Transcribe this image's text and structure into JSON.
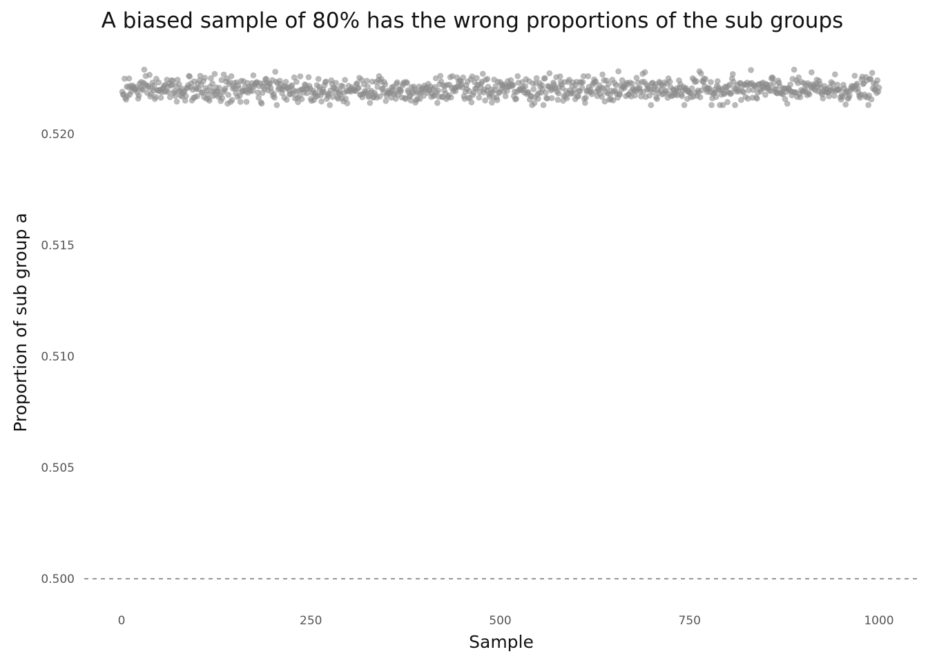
{
  "chart_data": {
    "type": "scatter",
    "title": "A biased sample of 80% has the wrong proportions of the sub groups",
    "xlabel": "Sample",
    "ylabel": "Proportion of sub group a",
    "xlim": [
      0,
      1000
    ],
    "ylim": [
      0.5,
      0.5225
    ],
    "x_ticks": [
      0,
      250,
      500,
      750,
      1000
    ],
    "x_tick_labels": [
      "0",
      "250",
      "500",
      "750",
      "1000"
    ],
    "y_ticks": [
      0.5,
      0.505,
      0.51,
      0.515,
      0.52
    ],
    "y_tick_labels": [
      "0.500",
      "0.505",
      "0.510",
      "0.515",
      "0.520"
    ],
    "grid": false,
    "reference_line": {
      "y": 0.5,
      "style": "dashed"
    },
    "point_color": "#8c8c8c",
    "n_points": 1000,
    "y_center": 0.522,
    "y_spread": 0.0003,
    "y_min_observed": 0.5213,
    "y_max_observed": 0.5229
  }
}
